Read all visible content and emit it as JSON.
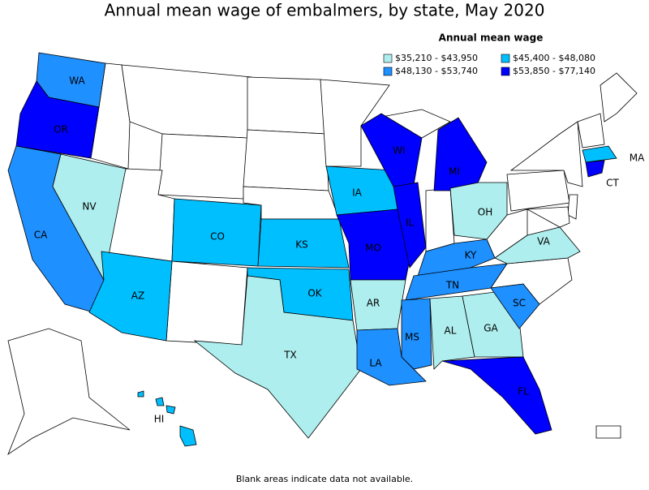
{
  "title": "Annual mean wage of embalmers, by state, May 2020",
  "legend": {
    "title": "Annual mean wage",
    "items": [
      {
        "label": "$35,210 - $43,950",
        "color": "#afeeee",
        "states": [
          "NV",
          "OH",
          "VA",
          "AR",
          "AL",
          "GA",
          "TX"
        ]
      },
      {
        "label": "$45,400 - $48,080",
        "color": "#00bfff",
        "states": [
          "CO",
          "KS",
          "IA",
          "OK",
          "AZ",
          "MA",
          "HI"
        ]
      },
      {
        "label": "$48,130 - $53,740",
        "color": "#1e90ff",
        "states": [
          "WA",
          "CA",
          "KY",
          "TN",
          "SC",
          "LA",
          "MS"
        ]
      },
      {
        "label": "$53,850 - $77,140",
        "color": "#0000ff",
        "states": [
          "OR",
          "WI",
          "MI",
          "IL",
          "MO",
          "FL",
          "CT"
        ]
      }
    ]
  },
  "footnote": "Blank areas indicate data not available."
}
